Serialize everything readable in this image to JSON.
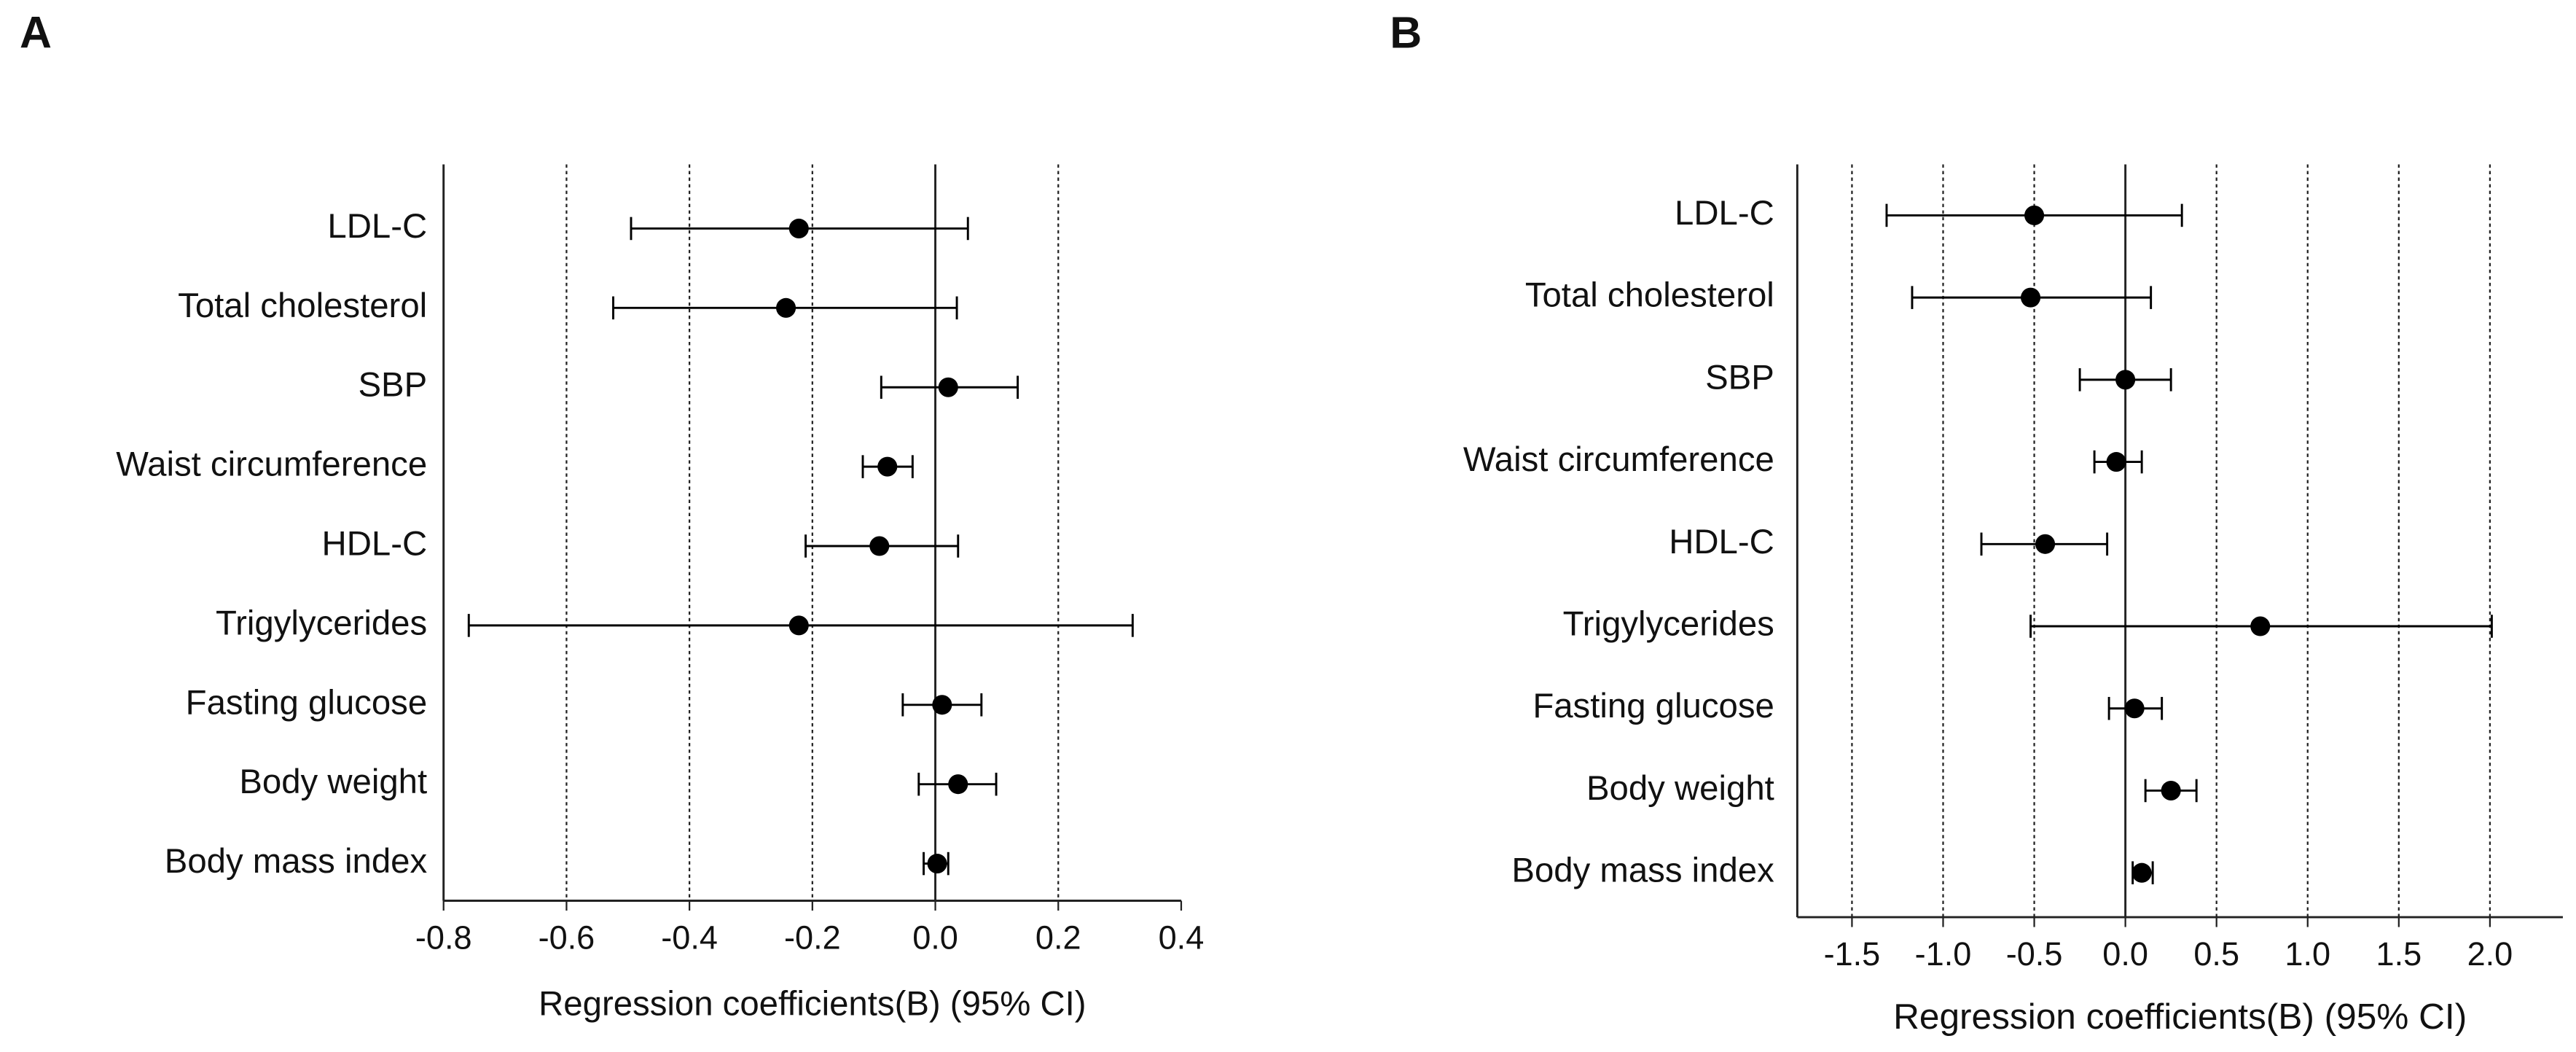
{
  "chart_data": [
    {
      "type": "forest",
      "panel": "A",
      "x_label": "Regression coefficients(B) (95% CI)",
      "categories": [
        "LDL-C",
        "Total cholesterol",
        "SBP",
        "Waist circumference",
        "HDL-C",
        "Trigylycerides",
        "Fasting glucose",
        "Body weight",
        "Body mass index"
      ],
      "values": [
        -0.222,
        -0.243,
        0.021,
        -0.078,
        -0.091,
        -0.222,
        0.011,
        0.037,
        0.003
      ],
      "lower": [
        -0.495,
        -0.524,
        -0.088,
        -0.118,
        -0.211,
        -0.759,
        -0.053,
        -0.027,
        -0.019
      ],
      "upper": [
        0.053,
        0.035,
        0.134,
        -0.037,
        0.037,
        0.321,
        0.075,
        0.099,
        0.021
      ],
      "color": "#000000",
      "xlim": [
        -0.8,
        0.4
      ],
      "xticks": [
        -0.8,
        -0.6,
        -0.4,
        -0.2,
        {
          "value": 0,
          "label": "0.0"
        },
        0.2,
        0.4
      ],
      "grid": true
    },
    {
      "type": "forest",
      "panel": "B",
      "x_label": "Regression coefficients(B) (95% CI)",
      "categories": [
        "LDL-C",
        "Total cholesterol",
        "SBP",
        "Waist circumference",
        "HDL-C",
        "Trigylycerides",
        "Fasting glucose",
        "Body weight",
        "Body mass index"
      ],
      "values": [
        -0.5,
        -0.52,
        0.0,
        -0.05,
        -0.44,
        0.74,
        0.05,
        0.25,
        0.09
      ],
      "lower": [
        -1.31,
        -1.17,
        -0.25,
        -0.17,
        -0.79,
        -0.52,
        -0.09,
        0.11,
        0.04
      ],
      "upper": [
        0.31,
        0.14,
        0.25,
        0.09,
        -0.1,
        2.01,
        0.2,
        0.39,
        0.15
      ],
      "color": "#000000",
      "xlim": [
        -1.8,
        2.4
      ],
      "xticks": [
        -1.5,
        {
          "value": -1,
          "label": "-1.0"
        },
        -0.5,
        {
          "value": 0,
          "label": "0.0"
        },
        0.5,
        {
          "value": 1,
          "label": "1.0"
        },
        1.5,
        {
          "value": 2,
          "label": "2.0"
        }
      ],
      "grid": true
    }
  ]
}
